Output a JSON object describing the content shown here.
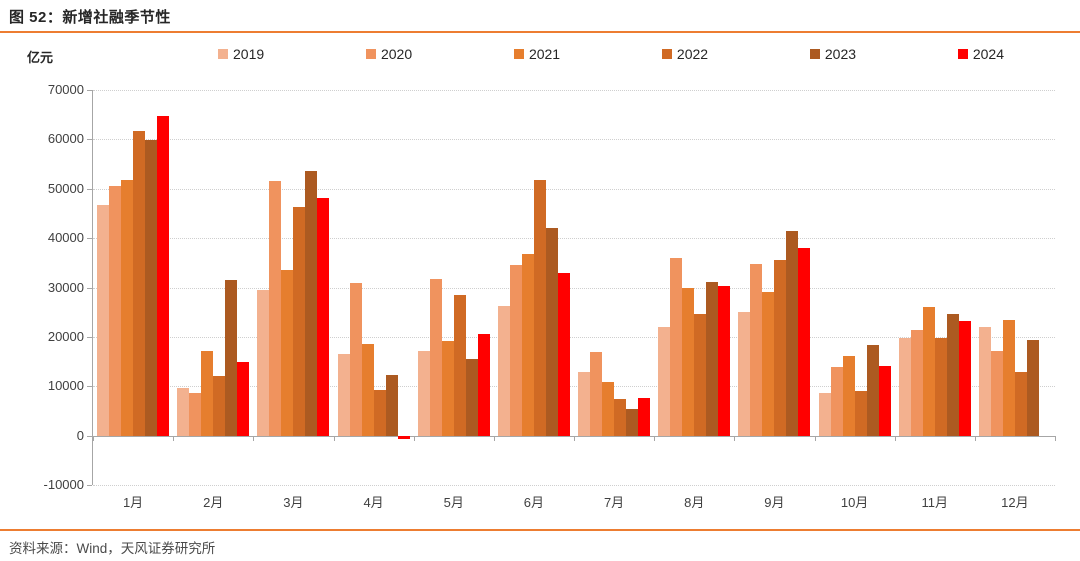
{
  "header": {
    "title": "图 52：新增社融季节性"
  },
  "chart": {
    "unit": "亿元",
    "y_ticks": [
      70000,
      60000,
      50000,
      40000,
      30000,
      20000,
      10000,
      0,
      -10000
    ]
  },
  "chart_data": {
    "type": "bar",
    "title": "新增社融季节性",
    "xlabel": "",
    "ylabel": "亿元",
    "ylim": [
      -10000,
      70000
    ],
    "grid": "dotted horizontal gridlines every 10000",
    "legend_position": "top",
    "categories": [
      "1月",
      "2月",
      "3月",
      "4月",
      "5月",
      "6月",
      "7月",
      "8月",
      "9月",
      "10月",
      "11月",
      "12月"
    ],
    "series": [
      {
        "name": "2019",
        "color": "#F3B18F",
        "values": [
          46800,
          9600,
          29500,
          16500,
          17100,
          26300,
          12900,
          22000,
          25100,
          8700,
          19800,
          22000
        ]
      },
      {
        "name": "2020",
        "color": "#F0935E",
        "values": [
          50500,
          8600,
          51600,
          30900,
          31700,
          34500,
          16900,
          35900,
          34700,
          13900,
          21300,
          17100
        ]
      },
      {
        "name": "2021",
        "color": "#E67E2E",
        "values": [
          51700,
          17100,
          33600,
          18500,
          19200,
          36800,
          10800,
          29800,
          29000,
          16100,
          26000,
          23500
        ]
      },
      {
        "name": "2022",
        "color": "#D06A24",
        "values": [
          61700,
          12100,
          46300,
          9300,
          28400,
          51700,
          7500,
          24700,
          35500,
          9000,
          19700,
          12900
        ]
      },
      {
        "name": "2023",
        "color": "#AC5A21",
        "values": [
          59900,
          31600,
          53600,
          12200,
          15600,
          42000,
          5300,
          31200,
          41400,
          18300,
          24700,
          19300
        ]
      },
      {
        "name": "2024",
        "color": "#FF0000",
        "values": [
          64700,
          15000,
          48200,
          -660,
          20600,
          32900,
          7700,
          30300,
          37900,
          14100,
          23300,
          null
        ]
      }
    ]
  },
  "footer": {
    "source": "资料来源：Wind，天风证券研究所"
  },
  "colors": {
    "accent_rule": "#ED7D31",
    "axis": "#A6A6A6",
    "gridline": "#CFCFCF"
  }
}
